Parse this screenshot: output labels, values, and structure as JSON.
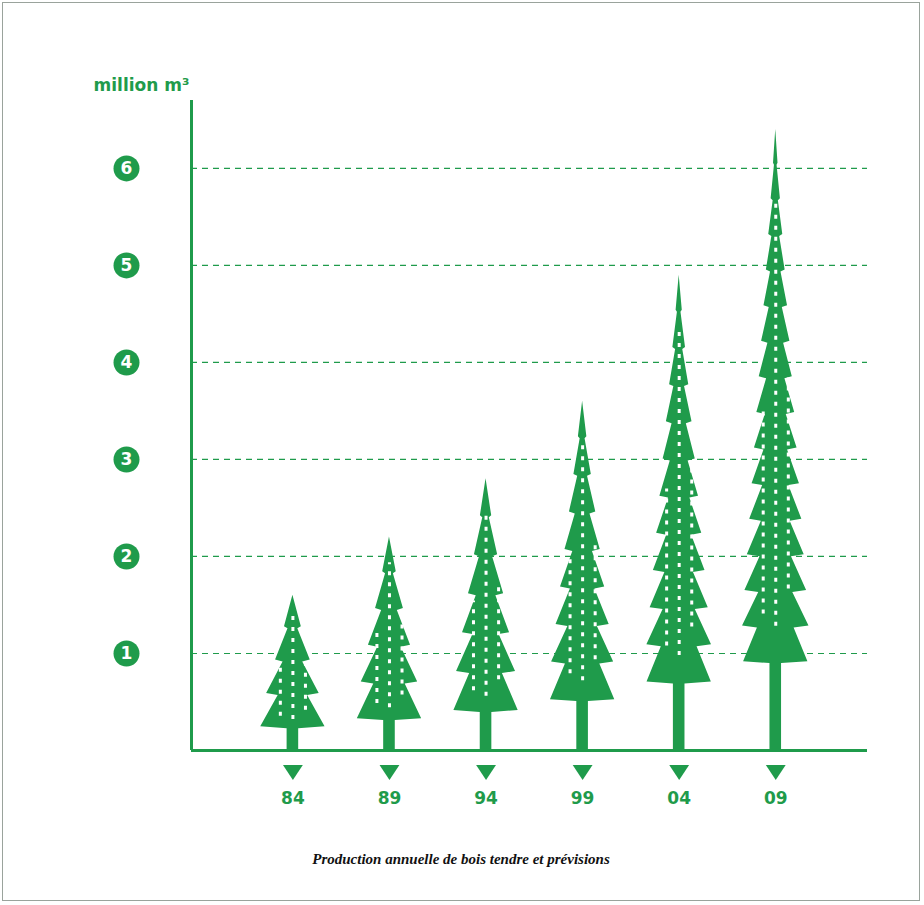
{
  "chart_data": {
    "type": "bar",
    "title": "Production annuelle de bois tendre et prévisions",
    "y_label": "million m³",
    "categories": [
      "84",
      "89",
      "94",
      "99",
      "04",
      "09"
    ],
    "values": [
      1.6,
      2.2,
      2.8,
      3.6,
      4.9,
      6.4
    ],
    "color": "#1f9b4b",
    "ylim": [
      0,
      6.7
    ],
    "yticks": [
      1,
      2,
      3,
      4,
      5,
      6
    ],
    "grid": true
  }
}
